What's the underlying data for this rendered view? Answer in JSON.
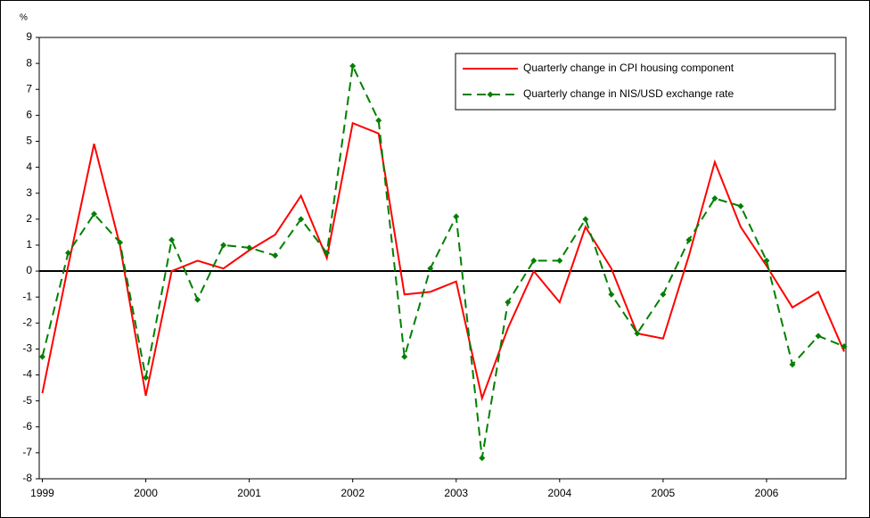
{
  "chart_data": {
    "type": "line",
    "y_label": "%",
    "x": [
      1999,
      1999.25,
      1999.5,
      1999.75,
      2000,
      2000.25,
      2000.5,
      2000.75,
      2001,
      2001.25,
      2001.5,
      2001.75,
      2002,
      2002.25,
      2002.5,
      2002.75,
      2003,
      2003.25,
      2003.5,
      2003.75,
      2004,
      2004.25,
      2004.5,
      2004.75,
      2005,
      2005.25,
      2005.5,
      2005.75,
      2006,
      2006.25,
      2006.5,
      2006.75
    ],
    "series": [
      {
        "name": "Quarterly change in CPI housing component",
        "color": "#ff0000",
        "dashed": false,
        "markers": false,
        "values": [
          -4.7,
          0.2,
          4.9,
          1.0,
          -4.8,
          0.0,
          0.4,
          0.1,
          0.8,
          1.4,
          2.9,
          0.5,
          5.7,
          5.3,
          -0.9,
          -0.8,
          -0.4,
          -4.9,
          -2.2,
          0.0,
          -1.2,
          1.7,
          0.1,
          -2.4,
          -2.6,
          0.6,
          4.2,
          1.7,
          0.2,
          -1.4,
          -0.8,
          -3.1
        ]
      },
      {
        "name": "Quarterly change in NIS/USD exchange rate",
        "color": "#008000",
        "dashed": true,
        "markers": true,
        "values": [
          -3.3,
          0.7,
          2.2,
          1.1,
          -4.1,
          1.2,
          -1.1,
          1.0,
          0.9,
          0.6,
          2.0,
          0.7,
          7.9,
          5.8,
          -3.3,
          0.1,
          2.1,
          -7.2,
          -1.2,
          0.4,
          0.4,
          2.0,
          -0.9,
          -2.4,
          -0.9,
          1.2,
          2.8,
          2.5,
          0.4,
          -3.6,
          -2.5,
          -2.9
        ]
      }
    ],
    "xlim": [
      1999,
      2006.75
    ],
    "xticks": [
      1999,
      2000,
      2001,
      2002,
      2003,
      2004,
      2005,
      2006
    ],
    "ylim": [
      -8,
      9
    ],
    "yticks": [
      -8,
      -7,
      -6,
      -5,
      -4,
      -3,
      -2,
      -1,
      0,
      1,
      2,
      3,
      4,
      5,
      6,
      7,
      8,
      9
    ],
    "grid": false,
    "legend": "upper right"
  }
}
